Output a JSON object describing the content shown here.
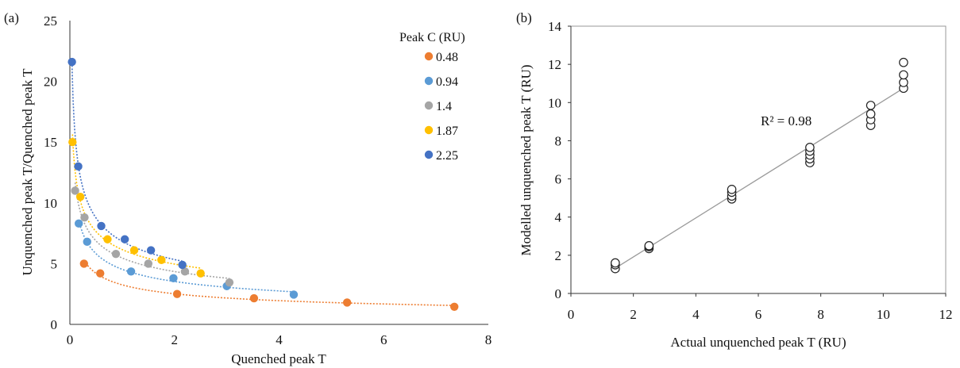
{
  "chart_data": [
    {
      "panel_label": "(a)",
      "type": "scatter",
      "xlabel": "Quenched peak T",
      "ylabel": "Unquenched peak T/Quenched peak T",
      "xlim": [
        0,
        8
      ],
      "ylim": [
        0,
        25
      ],
      "x_ticks": [
        "0",
        "2",
        "4",
        "6",
        "8"
      ],
      "y_ticks": [
        "0",
        "5",
        "10",
        "15",
        "20",
        "25"
      ],
      "legend_title": "Peak C (RU)",
      "legend_position": "top-right",
      "series": [
        {
          "name": "0.48",
          "color": "#ED7D31",
          "x": [
            0.27,
            0.58,
            2.05,
            3.52,
            5.3,
            7.35
          ],
          "y": [
            5.0,
            4.2,
            2.5,
            2.15,
            1.8,
            1.45
          ]
        },
        {
          "name": "0.94",
          "color": "#5B9BD5",
          "x": [
            0.17,
            0.33,
            1.17,
            1.98,
            3.0,
            4.28
          ],
          "y": [
            8.3,
            6.8,
            4.35,
            3.8,
            3.15,
            2.45
          ]
        },
        {
          "name": "1.4",
          "color": "#A5A5A5",
          "x": [
            0.1,
            0.28,
            0.88,
            1.5,
            2.2,
            3.05
          ],
          "y": [
            11.0,
            8.8,
            5.8,
            5.0,
            4.35,
            3.45
          ]
        },
        {
          "name": "1.87",
          "color": "#FFC000",
          "x": [
            0.05,
            0.2,
            0.72,
            1.23,
            1.75,
            2.5
          ],
          "y": [
            15.0,
            10.5,
            7.0,
            6.1,
            5.3,
            4.2
          ]
        },
        {
          "name": "2.25",
          "color": "#4472C4",
          "x": [
            0.04,
            0.16,
            0.6,
            1.05,
            1.55,
            2.15
          ],
          "y": [
            21.6,
            13.0,
            8.1,
            7.0,
            6.1,
            4.9
          ]
        }
      ]
    },
    {
      "panel_label": "(b)",
      "type": "scatter",
      "xlabel": "Actual unquenched peak T (RU)",
      "ylabel": "Modelled unquenched peak T (RU)",
      "xlim": [
        0,
        12
      ],
      "ylim": [
        0,
        14
      ],
      "x_ticks": [
        "0",
        "2",
        "4",
        "6",
        "8",
        "10",
        "12"
      ],
      "y_ticks": [
        "0",
        "2",
        "4",
        "6",
        "8",
        "10",
        "12",
        "14"
      ],
      "annotation": "R² = 0.98",
      "trendline": [
        [
          1.4,
          1.3
        ],
        [
          10.65,
          10.75
        ]
      ],
      "points": {
        "x": [
          1.42,
          1.42,
          1.42,
          2.5,
          2.5,
          2.5,
          5.15,
          5.15,
          5.15,
          5.15,
          7.65,
          7.65,
          7.65,
          7.65,
          7.65,
          9.6,
          9.6,
          9.6,
          9.6,
          10.65,
          10.65,
          10.65,
          10.65
        ],
        "y": [
          1.3,
          1.5,
          1.6,
          2.35,
          2.45,
          2.5,
          4.95,
          5.1,
          5.3,
          5.45,
          6.85,
          7.05,
          7.25,
          7.45,
          7.65,
          8.8,
          9.1,
          9.4,
          9.85,
          10.75,
          11.05,
          11.45,
          12.1
        ]
      }
    }
  ]
}
